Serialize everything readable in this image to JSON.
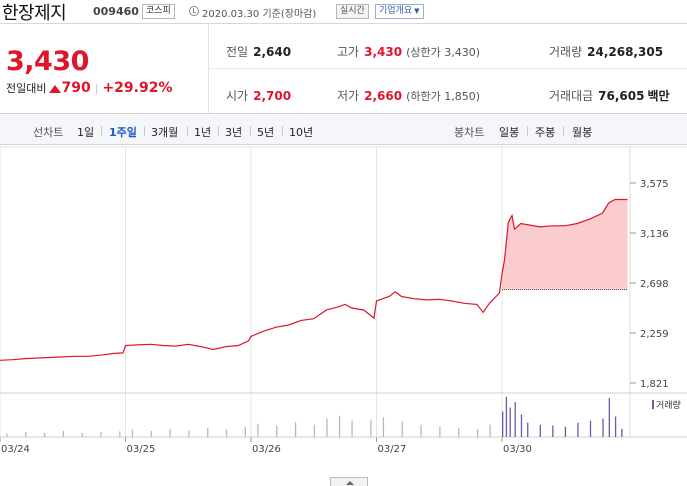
{
  "header": {
    "name": "한장제지",
    "code": "009460",
    "market": "코스피",
    "date": "2020.03.30",
    "basis": "기준(장마감)",
    "live": "실시간",
    "company": "기업개요"
  },
  "price": {
    "current": "3,430",
    "change_label": "전일대비",
    "change": "790",
    "rate": "+29.92%",
    "stats": {
      "prev": {
        "label": "전일",
        "value": "2,640"
      },
      "high": {
        "label": "고가",
        "value": "3,430",
        "limit": "(상한가 3,430)"
      },
      "volume": {
        "label": "거래량",
        "value": "24,268,305"
      },
      "open": {
        "label": "시가",
        "value": "2,700"
      },
      "low": {
        "label": "저가",
        "value": "2,660",
        "limit": "(하한가 1,850)"
      },
      "amount": {
        "label": "거래대금",
        "value": "76,605",
        "unit": "백만"
      }
    }
  },
  "tabs": {
    "line_label": "선차트",
    "line": [
      "1일",
      "1주일",
      "3개월",
      "1년",
      "3년",
      "5년",
      "10년"
    ],
    "active": "1주일",
    "candle_label": "봉차트",
    "candle": [
      "일봉",
      "주봉",
      "월봉"
    ]
  },
  "colors": {
    "up": "#e0152b",
    "link": "#1f57c3",
    "fill": "#fbcccd",
    "volume": "#6a5aa8"
  },
  "chart_data": {
    "type": "line",
    "x_ticks": [
      "03/24",
      "03/25",
      "03/26",
      "03/27",
      "03/30"
    ],
    "y_ticks": [
      "3,575",
      "3,136",
      "2,698",
      "2,259",
      "1,821"
    ],
    "ylim": [
      1821,
      3575
    ],
    "reference_value": 2640,
    "volume_legend": "거래량",
    "series": [
      {
        "values": [
          [
            0,
            2020
          ],
          [
            0.1,
            2025
          ],
          [
            0.2,
            2035
          ],
          [
            0.3,
            2040
          ],
          [
            0.4,
            2045
          ],
          [
            0.5,
            2050
          ],
          [
            0.6,
            2055
          ],
          [
            0.7,
            2055
          ],
          [
            0.8,
            2065
          ],
          [
            0.9,
            2080
          ],
          [
            0.98,
            2085
          ],
          [
            1.0,
            2150
          ],
          [
            1.1,
            2155
          ],
          [
            1.2,
            2160
          ],
          [
            1.3,
            2150
          ],
          [
            1.4,
            2145
          ],
          [
            1.5,
            2160
          ],
          [
            1.6,
            2140
          ],
          [
            1.7,
            2115
          ],
          [
            1.8,
            2140
          ],
          [
            1.9,
            2150
          ],
          [
            1.98,
            2190
          ],
          [
            2.0,
            2230
          ],
          [
            2.1,
            2275
          ],
          [
            2.2,
            2310
          ],
          [
            2.3,
            2330
          ],
          [
            2.4,
            2370
          ],
          [
            2.5,
            2385
          ],
          [
            2.6,
            2460
          ],
          [
            2.7,
            2490
          ],
          [
            2.75,
            2510
          ],
          [
            2.8,
            2480
          ],
          [
            2.9,
            2460
          ],
          [
            2.98,
            2390
          ],
          [
            3.0,
            2540
          ],
          [
            3.1,
            2580
          ],
          [
            3.15,
            2620
          ],
          [
            3.2,
            2580
          ],
          [
            3.3,
            2560
          ],
          [
            3.4,
            2550
          ],
          [
            3.5,
            2555
          ],
          [
            3.6,
            2540
          ],
          [
            3.7,
            2520
          ],
          [
            3.8,
            2510
          ],
          [
            3.85,
            2440
          ],
          [
            3.9,
            2520
          ],
          [
            3.98,
            2610
          ],
          [
            4.0,
            2780
          ],
          [
            4.02,
            2900
          ],
          [
            4.05,
            3230
          ],
          [
            4.08,
            3290
          ],
          [
            4.1,
            3170
          ],
          [
            4.15,
            3220
          ],
          [
            4.2,
            3210
          ],
          [
            4.3,
            3190
          ],
          [
            4.4,
            3200
          ],
          [
            4.5,
            3200
          ],
          [
            4.6,
            3220
          ],
          [
            4.7,
            3260
          ],
          [
            4.8,
            3310
          ],
          [
            4.85,
            3400
          ],
          [
            4.9,
            3430
          ],
          [
            5.0,
            3430
          ]
        ]
      }
    ],
    "volume": [
      [
        0.05,
        0.08
      ],
      [
        0.2,
        0.12
      ],
      [
        0.35,
        0.1
      ],
      [
        0.5,
        0.15
      ],
      [
        0.65,
        0.1
      ],
      [
        0.8,
        0.12
      ],
      [
        0.95,
        0.14
      ],
      [
        1.05,
        0.18
      ],
      [
        1.2,
        0.15
      ],
      [
        1.35,
        0.2
      ],
      [
        1.5,
        0.16
      ],
      [
        1.65,
        0.22
      ],
      [
        1.8,
        0.18
      ],
      [
        1.95,
        0.24
      ],
      [
        2.05,
        0.32
      ],
      [
        2.2,
        0.28
      ],
      [
        2.35,
        0.36
      ],
      [
        2.5,
        0.3
      ],
      [
        2.6,
        0.45
      ],
      [
        2.7,
        0.52
      ],
      [
        2.8,
        0.4
      ],
      [
        2.95,
        0.42
      ],
      [
        3.05,
        0.48
      ],
      [
        3.2,
        0.38
      ],
      [
        3.35,
        0.3
      ],
      [
        3.5,
        0.26
      ],
      [
        3.65,
        0.22
      ],
      [
        3.8,
        0.2
      ],
      [
        3.9,
        0.3
      ],
      [
        4.0,
        0.62
      ],
      [
        4.03,
        0.98
      ],
      [
        4.06,
        0.72
      ],
      [
        4.1,
        0.85
      ],
      [
        4.15,
        0.55
      ],
      [
        4.2,
        0.35
      ],
      [
        4.3,
        0.3
      ],
      [
        4.4,
        0.28
      ],
      [
        4.5,
        0.25
      ],
      [
        4.6,
        0.35
      ],
      [
        4.7,
        0.4
      ],
      [
        4.8,
        0.45
      ],
      [
        4.85,
        0.95
      ],
      [
        4.9,
        0.5
      ],
      [
        4.95,
        0.2
      ]
    ]
  }
}
